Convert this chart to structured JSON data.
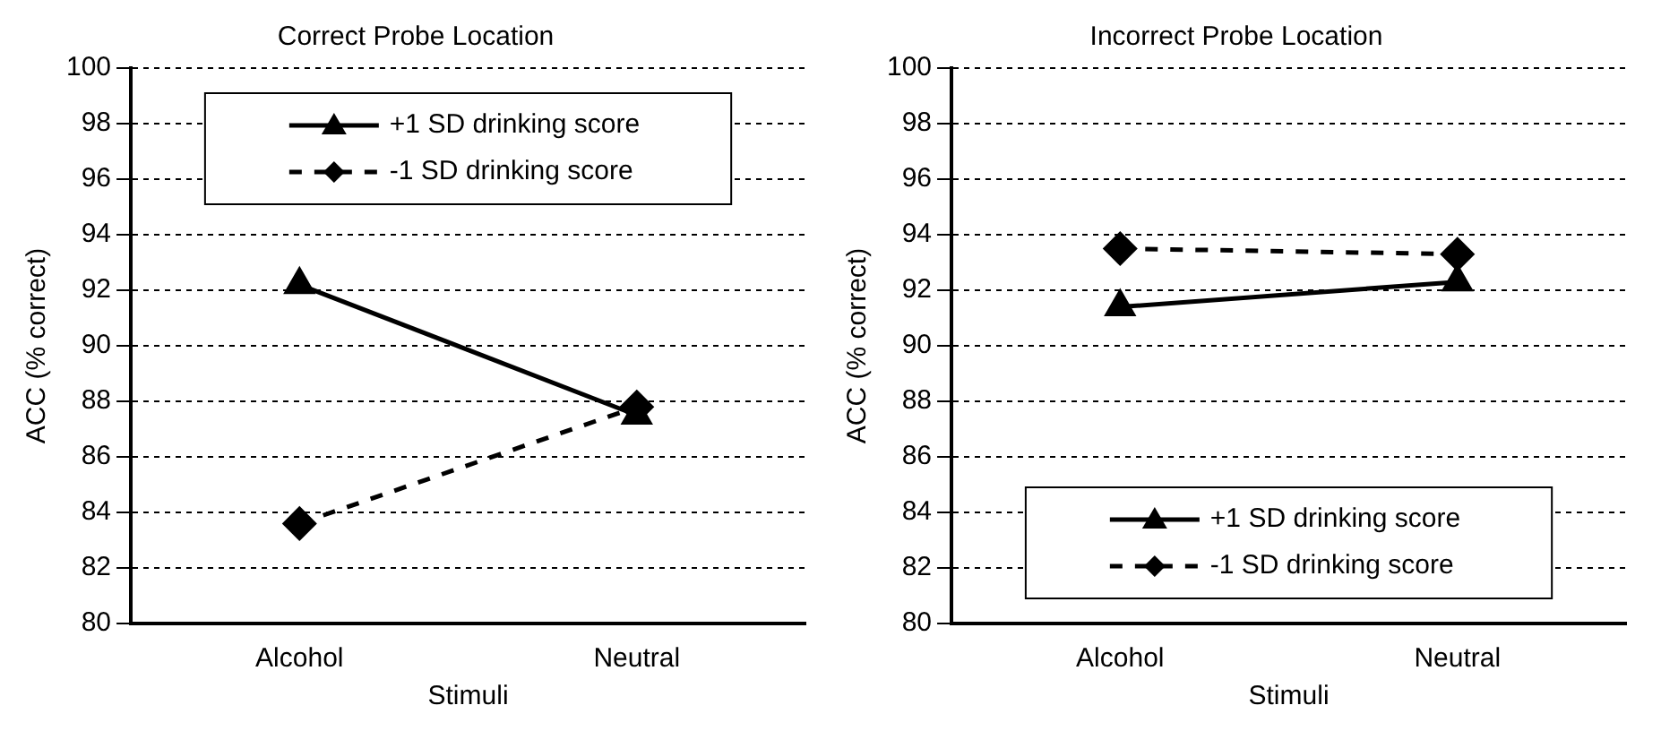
{
  "chart_data": [
    {
      "type": "line",
      "title": "Correct Probe Location",
      "xlabel": "Stimuli",
      "ylabel": "ACC (% correct)",
      "categories": [
        "Alcohol",
        "Neutral"
      ],
      "series": [
        {
          "name": "+1 SD drinking score",
          "color": "#000000",
          "values": [
            92.2,
            87.5
          ],
          "marker": "triangle",
          "line_style": "solid"
        },
        {
          "name": "-1 SD drinking score",
          "color": "#000000",
          "values": [
            83.6,
            87.8
          ],
          "marker": "diamond",
          "line_style": "dashed"
        }
      ],
      "ylim": [
        80,
        100
      ],
      "yticks": [
        80,
        82,
        84,
        86,
        88,
        90,
        92,
        94,
        96,
        98,
        100
      ],
      "grid": "y",
      "legend": "top"
    },
    {
      "type": "line",
      "title": "Incorrect Probe Location",
      "xlabel": "Stimuli",
      "ylabel": "ACC (% correct)",
      "categories": [
        "Alcohol",
        "Neutral"
      ],
      "series": [
        {
          "name": "+1 SD drinking score",
          "color": "#000000",
          "values": [
            91.4,
            92.3
          ],
          "marker": "triangle",
          "line_style": "solid"
        },
        {
          "name": "-1 SD drinking score",
          "color": "#000000",
          "values": [
            93.5,
            93.3
          ],
          "marker": "diamond",
          "line_style": "dashed"
        }
      ],
      "ylim": [
        80,
        100
      ],
      "yticks": [
        80,
        82,
        84,
        86,
        88,
        90,
        92,
        94,
        96,
        98,
        100
      ],
      "grid": "y",
      "legend": "bottom"
    }
  ]
}
